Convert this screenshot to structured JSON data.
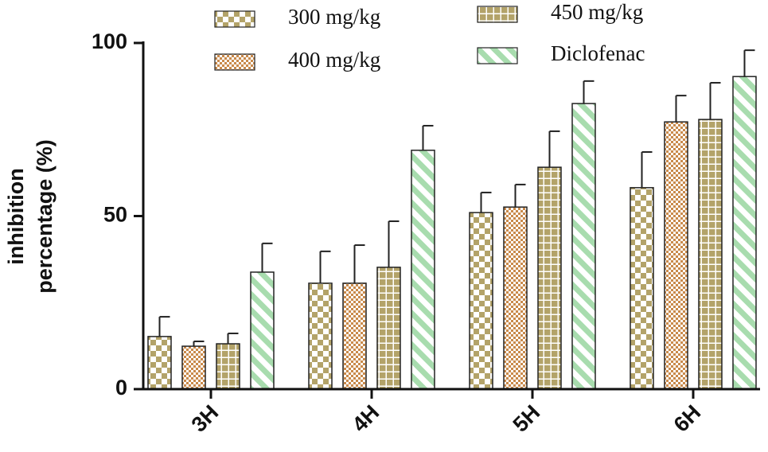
{
  "chart_data": {
    "type": "bar",
    "y_label": "inhibition percentage (%)",
    "categories": [
      "3H",
      "4H",
      "5H",
      "6H"
    ],
    "series": [
      {
        "name": "300 mg/kg",
        "color": "#b3a369",
        "pattern": "checker",
        "values": [
          15.2,
          30.6,
          51.0,
          58.2
        ],
        "errors": [
          5.7,
          9.2,
          5.8,
          10.3
        ]
      },
      {
        "name": "400 mg/kg",
        "color": "#c98a4b",
        "pattern": "dots",
        "values": [
          12.4,
          30.6,
          52.6,
          77.2
        ],
        "errors": [
          1.4,
          11.0,
          6.5,
          7.6
        ]
      },
      {
        "name": "450 mg/kg",
        "color": "#b3a369",
        "pattern": "grid",
        "values": [
          13.1,
          35.2,
          64.1,
          77.9
        ],
        "errors": [
          3.0,
          13.3,
          10.4,
          10.6
        ]
      },
      {
        "name": "Diclofenac",
        "color": "#a8dcae",
        "pattern": "stripes",
        "values": [
          33.8,
          69.0,
          82.5,
          90.3
        ],
        "errors": [
          8.3,
          7.1,
          6.5,
          7.6
        ]
      }
    ],
    "ylim": [
      0,
      100
    ],
    "yticks": [
      0,
      50,
      100
    ]
  }
}
